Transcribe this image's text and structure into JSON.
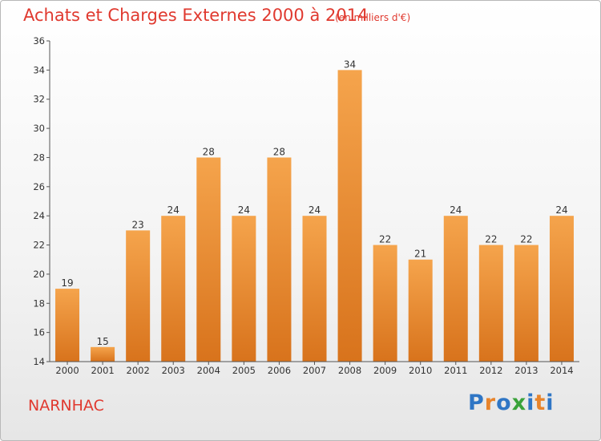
{
  "header": {
    "title": "Achats et Charges Externes 2000 à 2014",
    "subtitle": "(en milliers d'€)"
  },
  "footer": {
    "place": "NARNHAC",
    "brand_letters": [
      "P",
      "r",
      "o",
      "x",
      "i",
      "t",
      "i"
    ],
    "brand_colors": [
      "#2f76c5",
      "#e8842b",
      "#2f76c5",
      "#3aa23a",
      "#2f76c5",
      "#e8842b",
      "#2f76c5"
    ]
  },
  "chart_data": {
    "type": "bar",
    "title": "Achats et Charges Externes 2000 à 2014",
    "subtitle": "(en milliers d'€)",
    "categories": [
      "2000",
      "2001",
      "2002",
      "2003",
      "2004",
      "2005",
      "2006",
      "2007",
      "2008",
      "2009",
      "2010",
      "2011",
      "2012",
      "2013",
      "2014"
    ],
    "values": [
      19,
      15,
      23,
      24,
      28,
      24,
      28,
      24,
      34,
      22,
      21,
      24,
      22,
      22,
      24
    ],
    "ylim": [
      14,
      36
    ],
    "yticks": [
      14,
      16,
      18,
      20,
      22,
      24,
      26,
      28,
      30,
      32,
      34,
      36
    ],
    "grid": false,
    "bar_color_top": "#f5a44c",
    "bar_color_bottom": "#d8731c"
  }
}
